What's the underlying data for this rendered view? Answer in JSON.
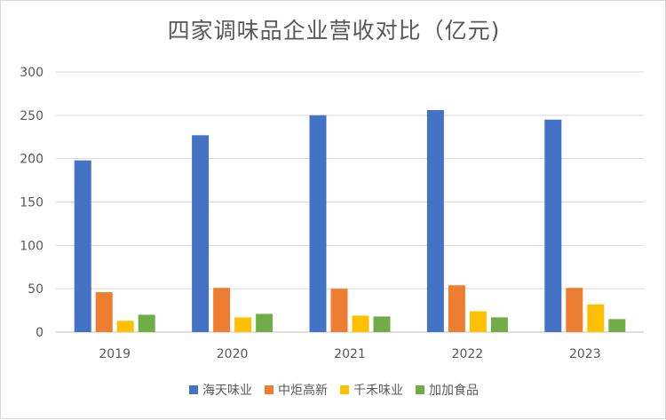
{
  "chart_data": {
    "type": "bar",
    "title": "四家调味品企业营收对比（亿元)",
    "categories": [
      "2019",
      "2020",
      "2021",
      "2022",
      "2023"
    ],
    "ylim": [
      0,
      300
    ],
    "yticks": [
      0,
      50,
      100,
      150,
      200,
      250,
      300
    ],
    "grid": true,
    "legend_position": "bottom",
    "series": [
      {
        "name": "海天味业",
        "color": "#4472c4",
        "values": [
          198,
          227,
          250,
          256,
          245
        ]
      },
      {
        "name": "中炬高新",
        "color": "#ed7d31",
        "values": [
          46,
          51,
          50,
          54,
          51
        ]
      },
      {
        "name": "千禾味业",
        "color": "#ffc000",
        "values": [
          13,
          17,
          19,
          24,
          32
        ]
      },
      {
        "name": "加加食品",
        "color": "#70ad47",
        "values": [
          20,
          21,
          18,
          17,
          15
        ]
      }
    ]
  }
}
